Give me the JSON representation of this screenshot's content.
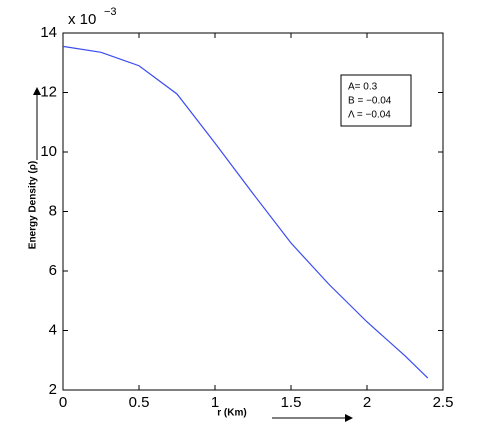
{
  "chart_data": {
    "type": "line",
    "y_label": "Energy Density (ρ)",
    "x_label": "r (Km)",
    "y_multiplier": "x 10",
    "y_multiplier_exponent": "−3",
    "x": [
      0,
      0.25,
      0.5,
      0.75,
      1.0,
      1.25,
      1.5,
      1.75,
      2.0,
      2.25,
      2.4
    ],
    "series": [
      {
        "name": "A= 0.3",
        "color": "#3a4cf0",
        "values": [
          13.55,
          13.35,
          12.9,
          11.95,
          10.3,
          8.6,
          6.94,
          5.55,
          4.29,
          3.15,
          2.4
        ]
      }
    ],
    "legend_lines": [
      "A= 0.3",
      "B = −0.04",
      "Λ = −0.04"
    ],
    "xlim": [
      0,
      2.5
    ],
    "xticks": [
      0,
      0.5,
      1,
      1.5,
      2,
      2.5
    ],
    "ylim": [
      2,
      14
    ],
    "yticks": [
      2,
      4,
      6,
      8,
      10,
      12,
      14
    ],
    "grid": false
  }
}
